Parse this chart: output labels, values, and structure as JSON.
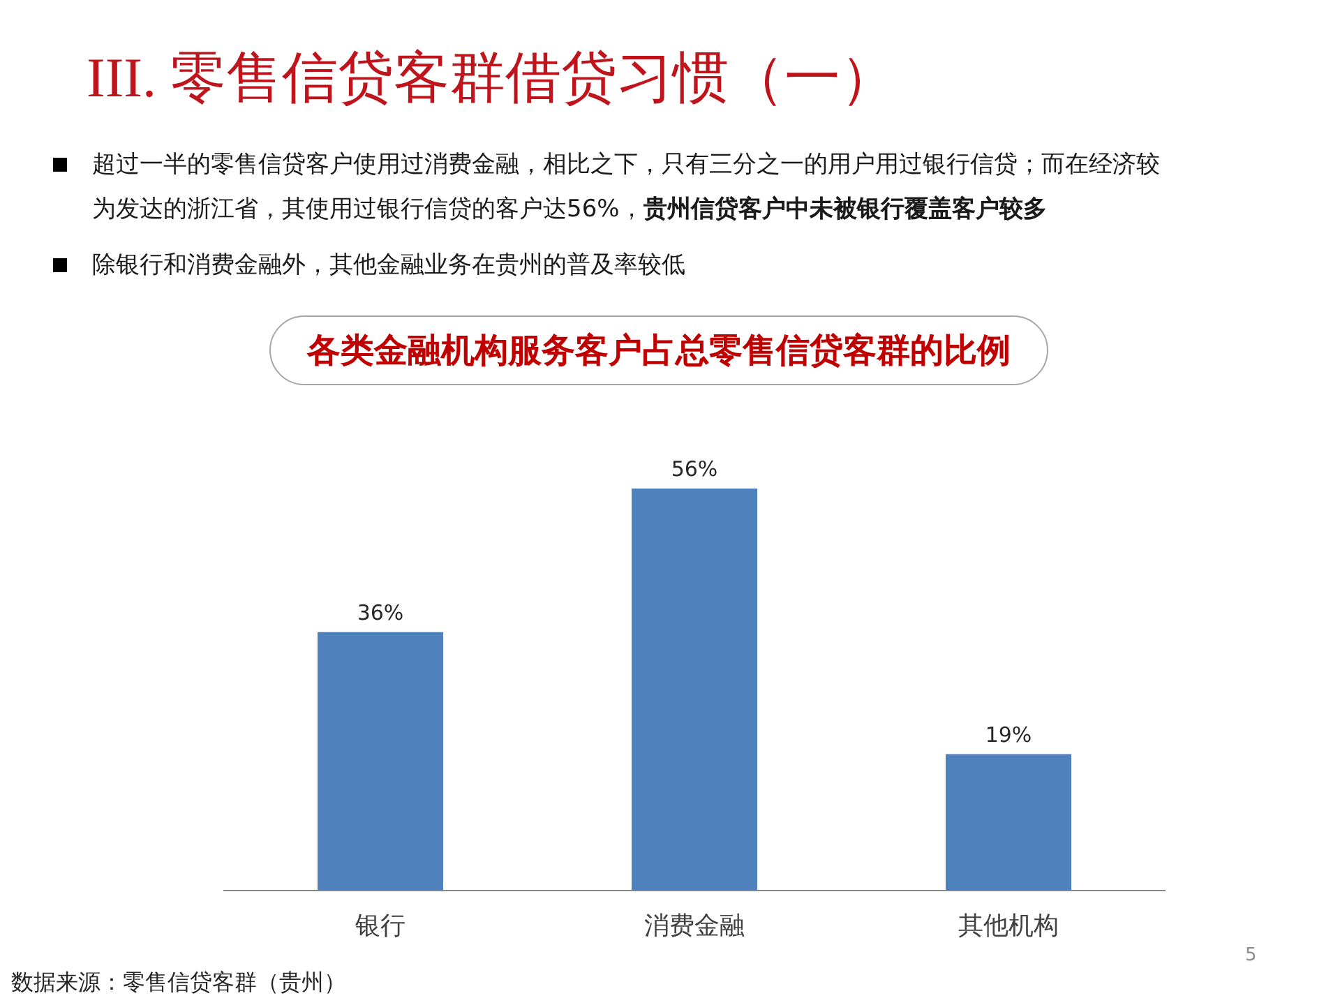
{
  "chart_data": {
    "type": "bar",
    "title": "III. 零售信贷客群借贷习惯（一）",
    "subtitle": "各类金融机构服务客户占总零售信贷客群的比例",
    "categories": [
      "银行",
      "消费金融",
      "其他机构"
    ],
    "values": [
      36,
      56,
      19
    ],
    "color": "#4f81bd",
    "value_labels": [
      "36%",
      "56%",
      "19%"
    ],
    "tick_labels": "x",
    "annotations": [
      "超过一半的零售信贷客户使用过消费金融，相比之下，只有三分之一的用户用过银行信贷；而在经济较",
      "为发达的浙江省，其使用过银行信贷的客户达56%，",
      "贵州信贷客户中未被银行覆盖客户较多",
      "除银行和消费金融外，其他金融业务在贵州的普及率较低",
      "数据来源：零售信贷客群（贵州）",
      "5"
    ]
  }
}
